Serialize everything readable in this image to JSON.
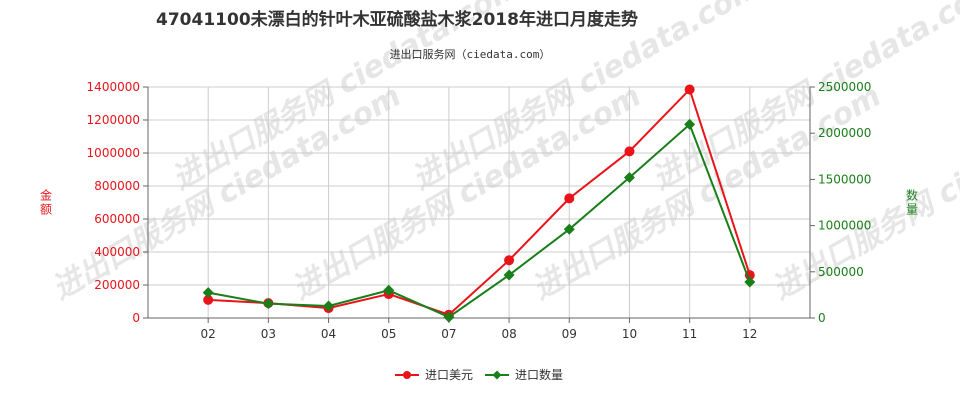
{
  "title": "47041100未漂白的针叶木亚硫酸盐木浆2018年进口月度走势",
  "subtitle": "进出口服务网（ciedata.com）",
  "watermark": "进出口服务网 ciedata.com",
  "colors": {
    "left": "#e8141a",
    "right": "#1a7e1a",
    "grid": "#cccccc",
    "axis": "#666666"
  },
  "chart_data": {
    "type": "line",
    "categories": [
      "02",
      "03",
      "04",
      "05",
      "07",
      "08",
      "09",
      "10",
      "11",
      "12"
    ],
    "y_left": {
      "label": "金额",
      "min": 0,
      "max": 1400000,
      "ticks": [
        0,
        200000,
        400000,
        600000,
        800000,
        1000000,
        1200000,
        1400000
      ]
    },
    "y_right": {
      "label": "数量",
      "min": 0,
      "max": 2500000,
      "ticks": [
        0,
        500000,
        1000000,
        1500000,
        2000000,
        2500000
      ]
    },
    "series": [
      {
        "name": "进口美元",
        "axis": "left",
        "color": "#e8141a",
        "marker": "circle",
        "values": [
          110000,
          90000,
          60000,
          145000,
          20000,
          350000,
          725000,
          1010000,
          1385000,
          260000
        ]
      },
      {
        "name": "进口数量",
        "axis": "right",
        "color": "#1a7e1a",
        "marker": "diamond",
        "values": [
          275000,
          155000,
          130000,
          300000,
          10000,
          465000,
          960000,
          1520000,
          2095000,
          390000
        ]
      }
    ],
    "grid": true,
    "legend_position": "bottom-center"
  }
}
